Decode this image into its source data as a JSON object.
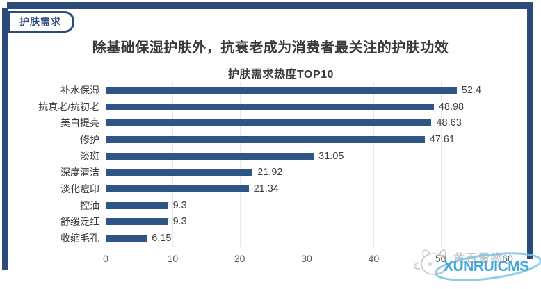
{
  "section_tag": {
    "label": "护肤需求",
    "accent_color": "#2C4A7A"
  },
  "title": "除基础保湿护肤外，抗衰老成为消费者最关注的护肤功效",
  "chart_data": {
    "type": "bar",
    "orientation": "horizontal",
    "title": "护肤需求热度TOP10",
    "categories": [
      "补水保湿",
      "抗衰老/抗初老",
      "美白提亮",
      "修护",
      "淡斑",
      "深度清洁",
      "淡化痘印",
      "控油",
      "舒缓泛红",
      "收缩毛孔"
    ],
    "values": [
      52.4,
      48.98,
      48.63,
      47.61,
      31.05,
      21.92,
      21.34,
      9.3,
      9.3,
      6.15
    ],
    "xlabel": "",
    "ylabel": "",
    "xlim": [
      0,
      60
    ],
    "x_ticks": [
      0,
      10,
      20,
      30,
      40,
      50,
      60
    ],
    "grid": true,
    "bar_color": "#2E5586",
    "legend": "none"
  },
  "watermark": {
    "site_text": "黄百雷物",
    "brand_text": "XUNRUICMS",
    "brand_color": "#3AA2D8",
    "mascot": "doodle-face-icon"
  }
}
